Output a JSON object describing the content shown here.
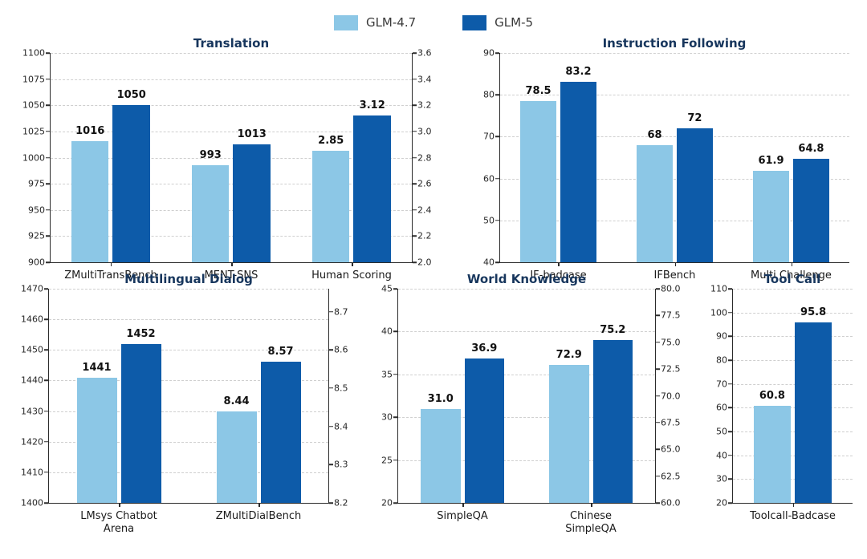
{
  "legend": {
    "series": [
      {
        "label": "GLM-4.7",
        "color": "#8CC7E6"
      },
      {
        "label": "GLM-5",
        "color": "#0D5BA9"
      }
    ]
  },
  "chart_data": [
    {
      "type": "bar",
      "title": "Translation",
      "series_names": [
        "GLM-4.7",
        "GLM-5"
      ],
      "left_axis": {
        "min": 900,
        "max": 1100,
        "ticks": [
          "900",
          "925",
          "950",
          "975",
          "1000",
          "1025",
          "1050",
          "1075",
          "1100"
        ]
      },
      "right_axis": {
        "min": 2.0,
        "max": 3.6,
        "ticks": [
          "2.0",
          "2.2",
          "2.4",
          "2.6",
          "2.8",
          "3.0",
          "3.2",
          "3.4",
          "3.6"
        ]
      },
      "groups": [
        {
          "label": "ZMultiTransBench",
          "axis": "left",
          "values": [
            1016,
            1050
          ],
          "value_labels": [
            "1016",
            "1050"
          ]
        },
        {
          "label": "MENT-SNS",
          "axis": "left",
          "values": [
            993,
            1013
          ],
          "value_labels": [
            "993",
            "1013"
          ]
        },
        {
          "label": "Human Scoring",
          "axis": "right",
          "values": [
            2.85,
            3.12
          ],
          "value_labels": [
            "2.85",
            "3.12"
          ]
        }
      ]
    },
    {
      "type": "bar",
      "title": "Instruction Following",
      "series_names": [
        "GLM-4.7",
        "GLM-5"
      ],
      "left_axis": {
        "min": 40,
        "max": 90,
        "ticks": [
          "40",
          "50",
          "60",
          "70",
          "80",
          "90"
        ]
      },
      "groups": [
        {
          "label": "IF-badcase",
          "axis": "left",
          "values": [
            78.5,
            83.2
          ],
          "value_labels": [
            "78.5",
            "83.2"
          ]
        },
        {
          "label": "IFBench",
          "axis": "left",
          "values": [
            68,
            72
          ],
          "value_labels": [
            "68",
            "72"
          ]
        },
        {
          "label": "Multi Challenge",
          "axis": "left",
          "values": [
            61.9,
            64.8
          ],
          "value_labels": [
            "61.9",
            "64.8"
          ]
        }
      ]
    },
    {
      "type": "bar",
      "title": "Multilingual Dialog",
      "series_names": [
        "GLM-4.7",
        "GLM-5"
      ],
      "left_axis": {
        "min": 1400,
        "max": 1470,
        "ticks": [
          "1400",
          "1410",
          "1420",
          "1430",
          "1440",
          "1450",
          "1460",
          "1470"
        ]
      },
      "right_axis": {
        "min": 8.2,
        "max": 8.76,
        "ticks": [
          "8.2",
          "8.3",
          "8.4",
          "8.5",
          "8.6",
          "8.7"
        ]
      },
      "groups": [
        {
          "label": "LMsys Chatbot\nArena",
          "axis": "left",
          "values": [
            1441,
            1452
          ],
          "value_labels": [
            "1441",
            "1452"
          ]
        },
        {
          "label": "ZMultiDialBench",
          "axis": "right",
          "values": [
            8.44,
            8.57
          ],
          "value_labels": [
            "8.44",
            "8.57"
          ]
        }
      ]
    },
    {
      "type": "bar",
      "title": "World Knowledge",
      "series_names": [
        "GLM-4.7",
        "GLM-5"
      ],
      "left_axis": {
        "min": 20,
        "max": 45,
        "ticks": [
          "20",
          "25",
          "30",
          "35",
          "40",
          "45"
        ]
      },
      "right_axis": {
        "min": 60,
        "max": 80,
        "ticks": [
          "60.0",
          "62.5",
          "65.0",
          "67.5",
          "70.0",
          "72.5",
          "75.0",
          "77.5",
          "80.0"
        ]
      },
      "groups": [
        {
          "label": "SimpleQA",
          "axis": "left",
          "values": [
            31.0,
            36.9
          ],
          "value_labels": [
            "31.0",
            "36.9"
          ]
        },
        {
          "label": "Chinese\nSimpleQA",
          "axis": "right",
          "values": [
            72.9,
            75.2
          ],
          "value_labels": [
            "72.9",
            "75.2"
          ]
        }
      ]
    },
    {
      "type": "bar",
      "title": "Tool Call",
      "series_names": [
        "GLM-4.7",
        "GLM-5"
      ],
      "left_axis": {
        "min": 20,
        "max": 110,
        "ticks": [
          "20",
          "30",
          "40",
          "50",
          "60",
          "70",
          "80",
          "90",
          "100",
          "110"
        ]
      },
      "groups": [
        {
          "label": "Toolcall-Badcase",
          "axis": "left",
          "values": [
            60.8,
            95.8
          ],
          "value_labels": [
            "60.8",
            "95.8"
          ]
        }
      ]
    }
  ]
}
